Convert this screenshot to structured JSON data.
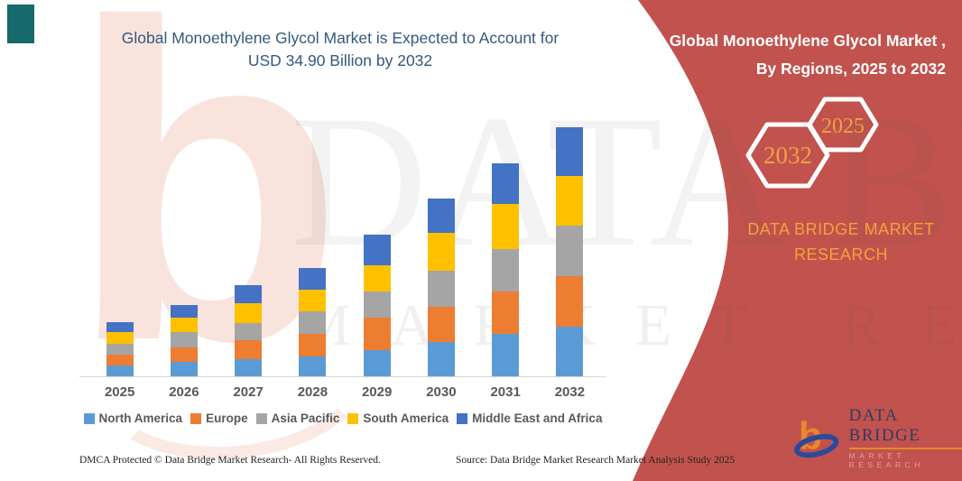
{
  "left": {
    "title_line1": "Global Monoethylene Glycol Market is Expected to Account for",
    "title_line2": "USD 34.90 Billion by 2032",
    "footer_left": "DMCA Protected © Data Bridge Market Research- All Rights Reserved.",
    "footer_source": "Source: Data Bridge Market Research Market Analysis Study 2025"
  },
  "right_panel": {
    "title_line1": "Global Monoethylene Glycol Market ,",
    "title_line2": "By Regions, 2025 to 2032",
    "hex_left_year": "2032",
    "hex_right_year": "2025",
    "brand_line1": "DATA BRIDGE MARKET",
    "brand_line2": "RESEARCH",
    "bg_color": "#c2524d",
    "accent_gold": "#f0a33c"
  },
  "logo": {
    "title": "DATA BRIDGE",
    "subtitle": "MARKET RESEARCH"
  },
  "watermark": {
    "big_letter": "b",
    "line1": "DATA BRIDGE",
    "line2": "MARKET RESEARCH"
  },
  "chart_data": {
    "type": "bar",
    "stacked": true,
    "title": "Global Monoethylene Glycol Market is Expected to Account for USD 34.90 Billion by 2032",
    "unit": "USD Billion",
    "categories": [
      "2025",
      "2026",
      "2027",
      "2028",
      "2029",
      "2030",
      "2031",
      "2032"
    ],
    "series": [
      {
        "name": "North America",
        "color": "#5b9bd5",
        "values": [
          1.5,
          2.0,
          2.35,
          2.85,
          3.65,
          4.8,
          6.0,
          6.95
        ]
      },
      {
        "name": "Europe",
        "color": "#ed7d31",
        "values": [
          1.55,
          2.0,
          2.7,
          3.15,
          4.6,
          4.9,
          5.9,
          7.15
        ]
      },
      {
        "name": "Asia Pacific",
        "color": "#a5a5a5",
        "values": [
          1.55,
          2.15,
          2.45,
          3.15,
          3.65,
          5.15,
          5.9,
          7.05
        ]
      },
      {
        "name": "South America",
        "color": "#ffc000",
        "values": [
          1.6,
          2.1,
          2.75,
          2.95,
          3.7,
          5.25,
          6.3,
          6.95
        ]
      },
      {
        "name": "Middle East and Africa",
        "color": "#4472c4",
        "values": [
          1.35,
          1.75,
          2.5,
          3.15,
          4.2,
          4.85,
          5.8,
          6.8
        ]
      }
    ],
    "totals": [
      7.55,
      10.0,
      12.75,
      15.25,
      19.8,
      24.95,
      29.9,
      34.9
    ],
    "ylim": [
      0,
      34.9
    ],
    "gridlines": false,
    "legend_position": "bottom",
    "xlabel": "",
    "ylabel": ""
  }
}
